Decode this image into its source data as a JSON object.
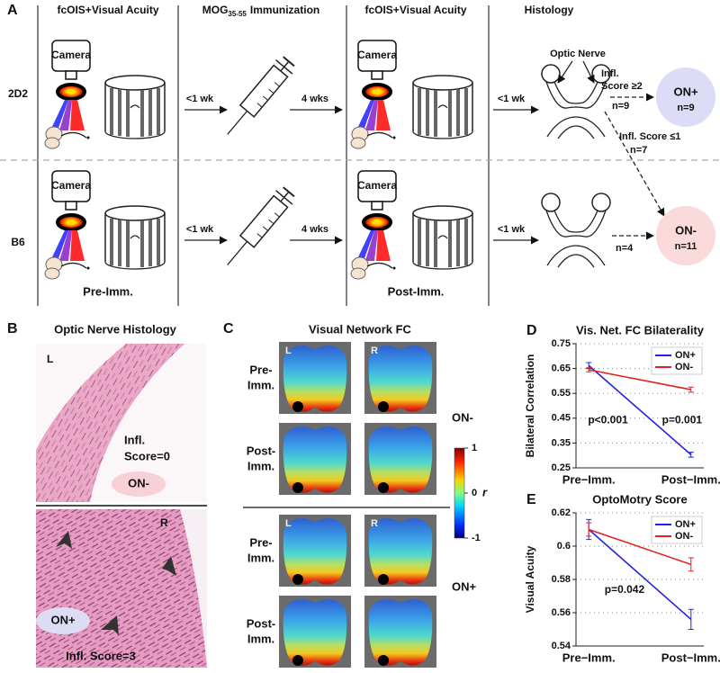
{
  "panel_a": {
    "label": "A",
    "headers": [
      "fcOIS+Visual Acuity",
      {
        "main": "MOG",
        "sub": "35-55",
        "rest": "Immunization"
      },
      "fcOIS+Visual Acuity",
      "Histology"
    ],
    "rows": [
      "2D2",
      "B6"
    ],
    "camera": "Camera",
    "intervals": [
      "<1 wk",
      "4 wks",
      "<1 wk"
    ],
    "timepoints": [
      "Pre-Imm.",
      "Post-Imm."
    ],
    "histology": {
      "optic_nerve": "Optic Nerve",
      "high_score": [
        "Infl.",
        "Score ≥2"
      ],
      "high_n": "n=9",
      "low_score": "Infl. Score ≤1",
      "low_n": "n=7",
      "b6_n": "n=4"
    },
    "outcomes": [
      {
        "name": "ON+",
        "n": "n=9"
      },
      {
        "name": "ON-",
        "n": "n=11"
      }
    ]
  },
  "panel_b": {
    "label": "B",
    "title": "Optic Nerve Histology",
    "top": {
      "side": "L",
      "score": [
        "Infl.",
        "Score=0"
      ],
      "group": "ON-"
    },
    "bottom": {
      "side": "R",
      "group": "ON+",
      "score": "Infl. Score=3"
    }
  },
  "panel_c": {
    "label": "C",
    "title": "Visual Network FC",
    "hemispheres": [
      "L",
      "R"
    ],
    "row_labels": [
      [
        "Pre-",
        "Imm."
      ],
      [
        "Post-",
        "Imm."
      ]
    ],
    "groups": [
      "ON-",
      "ON+"
    ],
    "colorbar": {
      "ticks": [
        1,
        0,
        -1
      ],
      "symbol": "r"
    }
  },
  "chart_data": [
    {
      "panel": "D",
      "type": "line",
      "title": "Vis. Net. FC Bilaterality",
      "y_label": "Bilateral Correlation",
      "categories": [
        "Pre−Imm.",
        "Post−Imm."
      ],
      "series": [
        {
          "name": "ON+",
          "color": "#2424e0",
          "values": [
            0.662,
            0.303
          ],
          "errors": [
            0.012,
            0.01
          ]
        },
        {
          "name": "ON-",
          "color": "#e02424",
          "values": [
            0.645,
            0.565
          ],
          "errors": [
            0.008,
            0.01
          ]
        }
      ],
      "ylim": [
        0.25,
        0.75
      ],
      "yticks": [
        0.25,
        0.35,
        0.45,
        0.55,
        0.65,
        0.75
      ],
      "grid": true,
      "legend": "upper right",
      "annotations": [
        "p<0.001",
        "p=0.001"
      ]
    },
    {
      "panel": "E",
      "type": "line",
      "title": "OptoMotry Score",
      "y_label": "Visual Acuity",
      "categories": [
        "Pre−Imm.",
        "Post−Imm."
      ],
      "series": [
        {
          "name": "ON+",
          "color": "#2424e0",
          "values": [
            0.61,
            0.556
          ],
          "errors": [
            0.006,
            0.006
          ]
        },
        {
          "name": "ON-",
          "color": "#e02424",
          "values": [
            0.61,
            0.589
          ],
          "errors": [
            0.004,
            0.004
          ]
        }
      ],
      "ylim": [
        0.54,
        0.62
      ],
      "yticks": [
        0.54,
        0.56,
        0.58,
        0.6,
        0.62
      ],
      "grid": true,
      "legend": "upper right",
      "annotations": [
        "p=0.042"
      ]
    }
  ]
}
